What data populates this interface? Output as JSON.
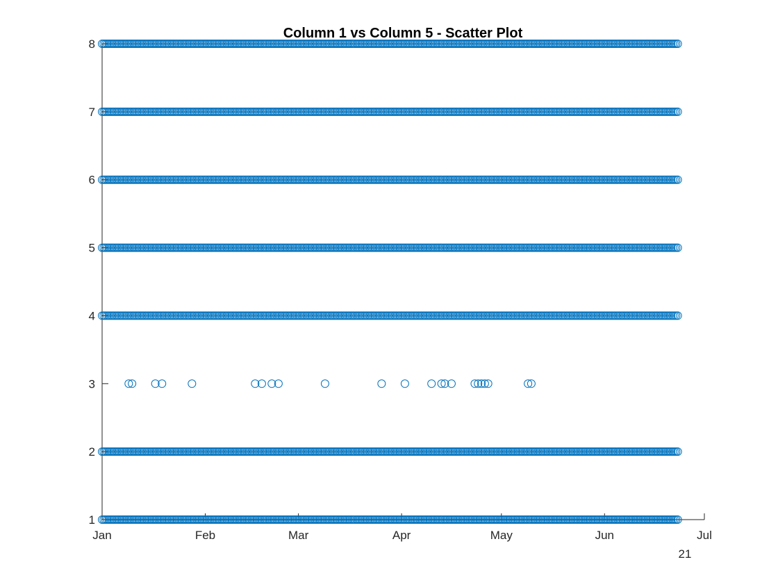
{
  "chart_data": {
    "type": "scatter",
    "title": "Column 1 vs Column 5 - Scatter Plot",
    "xlabel": "",
    "ylabel": "",
    "x_axis": {
      "type": "date",
      "range": [
        "2021-01-01",
        "2021-07-01"
      ],
      "tick_labels": [
        "Jan",
        "Feb",
        "Mar",
        "Apr",
        "May",
        "Jun",
        "Jul"
      ],
      "tick_dates": [
        "2021-01-01",
        "2021-02-01",
        "2021-03-01",
        "2021-04-01",
        "2021-05-01",
        "2021-06-01",
        "2021-07-01"
      ],
      "secondary_label": "21"
    },
    "y_axis": {
      "range": [
        1,
        8
      ],
      "ticks": [
        "1",
        "2",
        "3",
        "4",
        "5",
        "6",
        "7",
        "8"
      ]
    },
    "grid": false,
    "legend": "none",
    "marker": "open-circle",
    "color": "#0072BD",
    "series": [
      {
        "dense_levels": [
          1,
          2,
          4,
          5,
          6,
          7,
          8
        ],
        "dense_date_range": [
          "2021-01-01",
          "2021-06-23"
        ],
        "sparse_level": 3,
        "sparse_dates": [
          "2021-01-09",
          "2021-01-10",
          "2021-01-17",
          "2021-01-19",
          "2021-01-28",
          "2021-02-16",
          "2021-02-18",
          "2021-02-21",
          "2021-02-23",
          "2021-03-09",
          "2021-03-26",
          "2021-04-02",
          "2021-04-10",
          "2021-04-13",
          "2021-04-14",
          "2021-04-16",
          "2021-04-23",
          "2021-04-24",
          "2021-04-25",
          "2021-04-26",
          "2021-04-27",
          "2021-05-09",
          "2021-05-10"
        ]
      }
    ]
  }
}
